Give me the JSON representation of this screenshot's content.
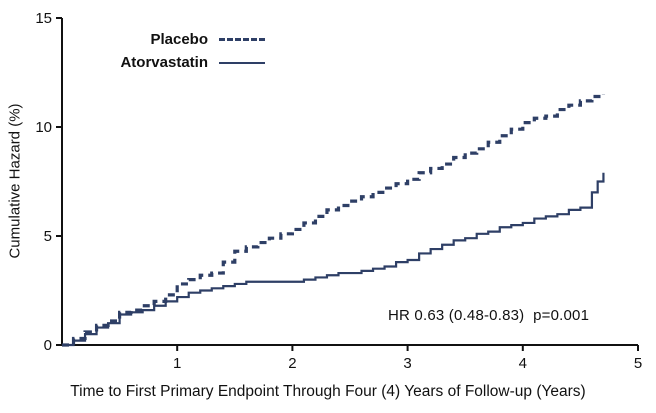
{
  "chart_data": {
    "type": "line",
    "subtype": "step",
    "title": "",
    "xlabel": "Time to First Primary Endpoint Through Four (4) Years of Follow-up (Years)",
    "ylabel": "Cumulative Hazard (%)",
    "xlim": [
      0,
      5
    ],
    "ylim": [
      0,
      15
    ],
    "xticks": [
      1,
      2,
      3,
      4,
      5
    ],
    "yticks": [
      0,
      5,
      10,
      15
    ],
    "grid": false,
    "legend_position": "top-left",
    "annotation": "HR 0.63 (0.48-0.83)  p=0.001",
    "axis_color": "#111111",
    "series": [
      {
        "name": "Placebo",
        "line_style": "dashed",
        "color": "#2e3f66",
        "x": [
          0,
          0.1,
          0.2,
          0.3,
          0.4,
          0.5,
          0.6,
          0.7,
          0.8,
          0.9,
          1.0,
          1.1,
          1.2,
          1.3,
          1.4,
          1.5,
          1.6,
          1.7,
          1.8,
          1.9,
          2.0,
          2.1,
          2.2,
          2.3,
          2.4,
          2.5,
          2.6,
          2.7,
          2.8,
          2.9,
          3.0,
          3.1,
          3.2,
          3.3,
          3.4,
          3.5,
          3.6,
          3.7,
          3.8,
          3.9,
          4.0,
          4.1,
          4.2,
          4.3,
          4.4,
          4.5,
          4.6,
          4.7
        ],
        "y": [
          0,
          0.3,
          0.6,
          0.9,
          1.1,
          1.5,
          1.6,
          1.8,
          2.0,
          2.3,
          2.8,
          3.0,
          3.2,
          3.3,
          3.8,
          4.3,
          4.5,
          4.7,
          4.9,
          5.1,
          5.3,
          5.6,
          5.9,
          6.2,
          6.4,
          6.6,
          6.8,
          7.0,
          7.2,
          7.4,
          7.6,
          7.9,
          8.1,
          8.3,
          8.6,
          8.8,
          9.0,
          9.3,
          9.6,
          9.9,
          10.2,
          10.4,
          10.5,
          10.8,
          11.0,
          11.2,
          11.4,
          11.5
        ]
      },
      {
        "name": "Atorvastatin",
        "line_style": "solid",
        "color": "#2e3f66",
        "x": [
          0,
          0.1,
          0.2,
          0.3,
          0.4,
          0.5,
          0.6,
          0.7,
          0.8,
          0.9,
          1.0,
          1.1,
          1.2,
          1.3,
          1.4,
          1.5,
          1.6,
          1.7,
          1.8,
          1.9,
          2.0,
          2.1,
          2.2,
          2.3,
          2.4,
          2.5,
          2.6,
          2.7,
          2.8,
          2.9,
          3.0,
          3.1,
          3.2,
          3.3,
          3.4,
          3.5,
          3.6,
          3.7,
          3.8,
          3.9,
          4.0,
          4.1,
          4.2,
          4.3,
          4.4,
          4.5,
          4.6,
          4.65,
          4.7
        ],
        "y": [
          0,
          0.2,
          0.5,
          0.8,
          1.0,
          1.4,
          1.5,
          1.6,
          1.8,
          2.0,
          2.2,
          2.4,
          2.5,
          2.6,
          2.7,
          2.8,
          2.9,
          2.9,
          2.9,
          2.9,
          2.9,
          3.0,
          3.1,
          3.2,
          3.3,
          3.3,
          3.4,
          3.5,
          3.6,
          3.8,
          3.9,
          4.2,
          4.4,
          4.6,
          4.8,
          4.9,
          5.1,
          5.2,
          5.4,
          5.5,
          5.6,
          5.8,
          5.9,
          6.0,
          6.2,
          6.3,
          7.0,
          7.5,
          7.9
        ]
      }
    ]
  }
}
